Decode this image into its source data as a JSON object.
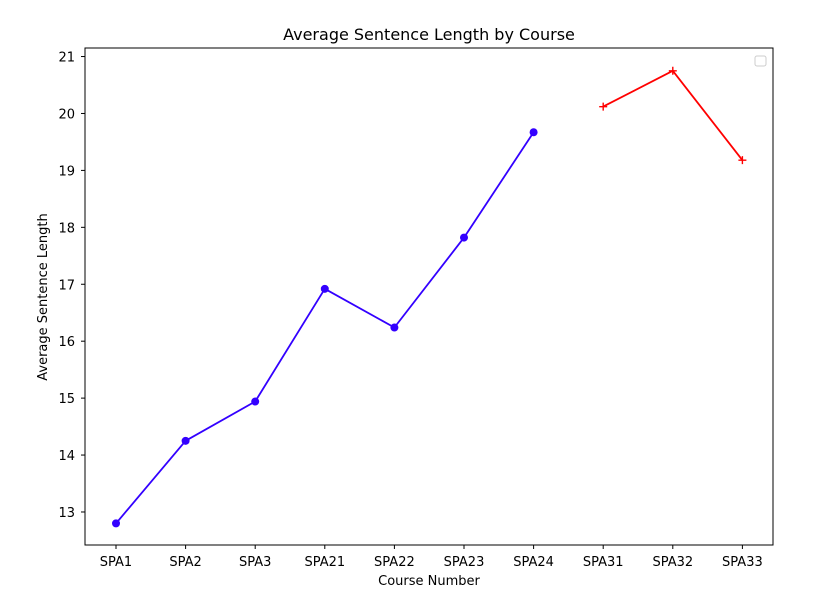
{
  "chart_data": {
    "type": "line",
    "title": "Average Sentence Length by Course",
    "xlabel": "Course Number",
    "ylabel": "Average Sentence Length",
    "categories": [
      "SPA1",
      "SPA2",
      "SPA3",
      "SPA21",
      "SPA22",
      "SPA23",
      "SPA24",
      "SPA31",
      "SPA32",
      "SPA33"
    ],
    "ylim": [
      12.42,
      21.15
    ],
    "yticks": [
      13,
      14,
      15,
      16,
      17,
      18,
      19,
      20,
      21
    ],
    "grid": false,
    "legend": "top-right (empty)",
    "series": [
      {
        "color": "#3300ff",
        "marker": "circle",
        "points": [
          {
            "x": "SPA1",
            "y": 12.8
          },
          {
            "x": "SPA2",
            "y": 14.25
          },
          {
            "x": "SPA3",
            "y": 14.94
          },
          {
            "x": "SPA21",
            "y": 16.92
          },
          {
            "x": "SPA22",
            "y": 16.24
          },
          {
            "x": "SPA23",
            "y": 17.82
          },
          {
            "x": "SPA24",
            "y": 19.67
          }
        ]
      },
      {
        "color": "#ff0000",
        "marker": "plus",
        "points": [
          {
            "x": "SPA31",
            "y": 20.12
          },
          {
            "x": "SPA32",
            "y": 20.75
          },
          {
            "x": "SPA33",
            "y": 19.18
          }
        ]
      }
    ]
  }
}
